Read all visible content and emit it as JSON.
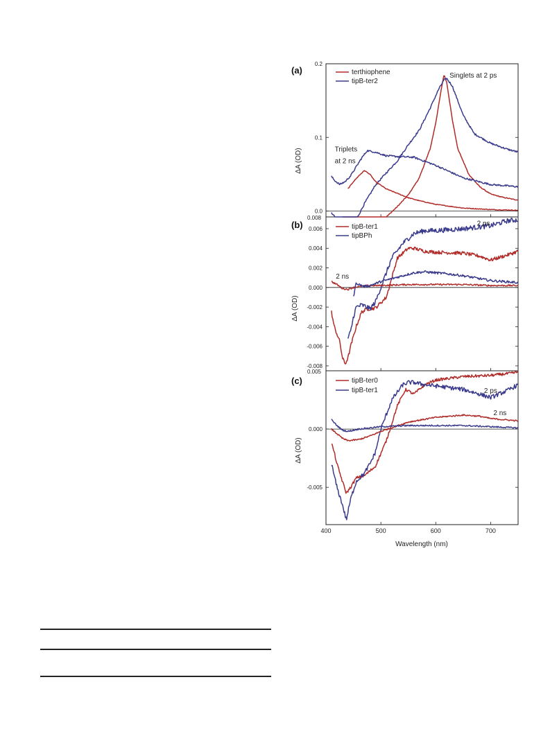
{
  "colors": {
    "red": "#b02a28",
    "blue": "#3a3a8c",
    "axis": "#222222"
  },
  "chart_data": [
    {
      "type": "line",
      "panel_label": "(a)",
      "ylabel": "ΔA (OD)",
      "xlabel": "",
      "xlim": [
        410,
        750
      ],
      "ylim": [
        -0.008,
        0.2
      ],
      "yticks": [
        0.0,
        0.1,
        0.2
      ],
      "ytick_labels": [
        "0.0",
        "0.1",
        "0.2"
      ],
      "ymin_label": "0.008",
      "zero_line": true,
      "legend": [
        "terthiophene",
        "tipB-ter2"
      ],
      "annotations": [
        {
          "text": "Singlets at 2 ps",
          "x": 625,
          "y": 0.181
        },
        {
          "text": "Triplets",
          "x": 416,
          "y": 0.081
        },
        {
          "text": "at 2 ns",
          "x": 416,
          "y": 0.065
        }
      ],
      "series": [
        {
          "color": "red",
          "noise": 0.0006,
          "x": [
            430,
            437,
            445,
            455,
            470,
            490,
            510,
            530,
            550,
            570,
            590,
            600,
            610,
            615,
            620,
            630,
            640,
            660,
            680,
            700,
            720,
            740,
            750
          ],
          "y": [
            -0.029,
            -0.035,
            -0.033,
            -0.03,
            -0.026,
            -0.018,
            -0.008,
            0.006,
            0.022,
            0.045,
            0.085,
            0.12,
            0.165,
            0.185,
            0.175,
            0.125,
            0.085,
            0.05,
            0.033,
            0.023,
            0.019,
            0.016,
            0.015
          ]
        },
        {
          "color": "blue",
          "noise": 0.0012,
          "x": [
            410,
            420,
            430,
            437,
            445,
            455,
            470,
            490,
            510,
            530,
            550,
            570,
            590,
            605,
            615,
            620,
            630,
            650,
            670,
            700,
            730,
            750
          ],
          "y": [
            -0.002,
            -0.012,
            -0.028,
            -0.036,
            -0.03,
            -0.012,
            0.01,
            0.035,
            0.052,
            0.068,
            0.09,
            0.11,
            0.14,
            0.165,
            0.178,
            0.18,
            0.17,
            0.13,
            0.105,
            0.092,
            0.084,
            0.08
          ]
        },
        {
          "color": "red",
          "noise": 0.0005,
          "x": [
            440,
            450,
            460,
            470,
            480,
            490,
            510,
            530,
            550,
            570,
            600,
            650,
            700,
            750
          ],
          "y": [
            0.03,
            0.04,
            0.048,
            0.055,
            0.05,
            0.04,
            0.03,
            0.024,
            0.018,
            0.014,
            0.009,
            0.004,
            0.002,
            0.001
          ]
        },
        {
          "color": "blue",
          "noise": 0.0012,
          "x": [
            410,
            415,
            425,
            435,
            445,
            455,
            465,
            475,
            490,
            510,
            530,
            560,
            600,
            650,
            700,
            750
          ],
          "y": [
            0.047,
            0.042,
            0.036,
            0.04,
            0.048,
            0.06,
            0.072,
            0.082,
            0.08,
            0.075,
            0.074,
            0.073,
            0.062,
            0.045,
            0.036,
            0.033
          ]
        }
      ]
    },
    {
      "type": "line",
      "panel_label": "(b)",
      "ylabel": "ΔA (OD)",
      "xlabel": "",
      "xlim": [
        410,
        750
      ],
      "ylim": [
        -0.0085,
        0.0072
      ],
      "yticks": [
        -0.008,
        -0.006,
        -0.004,
        -0.002,
        0.0,
        0.002,
        0.004,
        0.006
      ],
      "ytick_labels": [
        "-0.008",
        "-0.006",
        "-0.004",
        "-0.002",
        "0.000",
        "0.002",
        "0.004",
        "0.006"
      ],
      "zero_line": true,
      "legend": [
        "tipB-ter1",
        "tipBPh"
      ],
      "annotations": [
        {
          "text": "2 ps",
          "x": 675,
          "y": 0.0063
        },
        {
          "text": "2 ns",
          "x": 418,
          "y": 0.0009
        }
      ],
      "series": [
        {
          "color": "red",
          "noise": 0.00018,
          "x": [
            410,
            415,
            425,
            430,
            435,
            440,
            445,
            455,
            465,
            475,
            490,
            510,
            530,
            550,
            560,
            580,
            600,
            650,
            680,
            700,
            730,
            750
          ],
          "y": [
            -0.0025,
            -0.004,
            -0.0055,
            -0.0072,
            -0.0078,
            -0.0072,
            -0.006,
            -0.004,
            -0.0025,
            -0.0022,
            -0.0021,
            -0.001,
            0.003,
            0.004,
            0.004,
            0.0037,
            0.0036,
            0.0035,
            0.0032,
            0.0028,
            0.0033,
            0.0037
          ]
        },
        {
          "color": "blue",
          "noise": 0.00025,
          "x": [
            440,
            445,
            450,
            455,
            465,
            475,
            480,
            490,
            500,
            510,
            520,
            540,
            560,
            580,
            600,
            650,
            700,
            730,
            750
          ],
          "y": [
            -0.0052,
            -0.0045,
            -0.003,
            -0.002,
            -0.0018,
            -0.002,
            -0.0022,
            -0.0015,
            0.0,
            0.0015,
            0.003,
            0.0045,
            0.0055,
            0.0058,
            0.0058,
            0.006,
            0.0063,
            0.0068,
            0.0069
          ]
        },
        {
          "color": "red",
          "noise": 8e-05,
          "x": [
            410,
            420,
            430,
            440,
            450,
            460,
            480,
            500,
            550,
            600,
            650,
            700,
            750
          ],
          "y": [
            0.0006,
            0.0003,
            -0.0001,
            -0.0002,
            0.0,
            0.0001,
            0.0002,
            0.0002,
            0.0003,
            0.0003,
            0.0003,
            0.0002,
            0.0002
          ]
        },
        {
          "color": "blue",
          "noise": 0.00012,
          "x": [
            450,
            455,
            460,
            470,
            480,
            490,
            500,
            520,
            540,
            560,
            580,
            600,
            620,
            650,
            680,
            700,
            750
          ],
          "y": [
            -0.001,
            0.0005,
            0.0003,
            0.0001,
            0.0002,
            0.0004,
            0.0006,
            0.0009,
            0.0012,
            0.0015,
            0.0016,
            0.0015,
            0.0014,
            0.0012,
            0.0009,
            0.0007,
            0.0005
          ]
        }
      ]
    },
    {
      "type": "line",
      "panel_label": "(c)",
      "ylabel": "ΔA (OD)",
      "xlabel": "Wavelength (nm)",
      "xlim": [
        400,
        750
      ],
      "ylim": [
        -0.0082,
        0.005
      ],
      "xticks": [
        400,
        500,
        600,
        700
      ],
      "xtick_labels": [
        "400",
        "500",
        "600",
        "700"
      ],
      "yticks": [
        -0.005,
        0.0
      ],
      "ytick_labels": [
        "-0.005",
        "0.000"
      ],
      "ytop_label": "0.005",
      "zero_line": true,
      "legend": [
        "tipB-ter0",
        "tipB-ter1"
      ],
      "annotations": [
        {
          "text": "2 ps",
          "x": 688,
          "y": 0.0031
        },
        {
          "text": "2 ns",
          "x": 705,
          "y": 0.0012
        }
      ],
      "series": [
        {
          "color": "red",
          "noise": 0.00012,
          "x": [
            410,
            415,
            420,
            430,
            437,
            445,
            455,
            470,
            490,
            510,
            530,
            545,
            560,
            580,
            600,
            650,
            700,
            720,
            740,
            750
          ],
          "y": [
            -0.0012,
            -0.002,
            -0.003,
            -0.0045,
            -0.0055,
            -0.005,
            -0.0042,
            -0.004,
            -0.0032,
            -0.001,
            0.002,
            0.0034,
            0.003,
            0.0038,
            0.0042,
            0.0045,
            0.0046,
            0.0047,
            0.0048,
            0.0049
          ]
        },
        {
          "color": "blue",
          "noise": 0.00018,
          "x": [
            410,
            420,
            430,
            437,
            445,
            455,
            470,
            480,
            490,
            500,
            520,
            540,
            550,
            560,
            580,
            600,
            650,
            680,
            700,
            730,
            750
          ],
          "y": [
            -0.003,
            -0.005,
            -0.0065,
            -0.0078,
            -0.006,
            -0.0045,
            -0.0038,
            -0.003,
            -0.002,
            0.0,
            0.0025,
            0.0038,
            0.004,
            0.004,
            0.0038,
            0.0037,
            0.0034,
            0.003,
            0.0027,
            0.0033,
            0.0038
          ]
        },
        {
          "color": "red",
          "noise": 6e-05,
          "x": [
            410,
            420,
            430,
            440,
            460,
            480,
            500,
            550,
            600,
            650,
            680,
            700,
            750
          ],
          "y": [
            0.0,
            -0.0004,
            -0.0008,
            -0.001,
            -0.0009,
            -0.0006,
            -0.0002,
            0.0006,
            0.001,
            0.0012,
            0.0011,
            0.0009,
            0.0007
          ]
        },
        {
          "color": "blue",
          "noise": 6e-05,
          "x": [
            410,
            420,
            430,
            440,
            460,
            480,
            500,
            550,
            600,
            650,
            700,
            750
          ],
          "y": [
            0.0008,
            0.0003,
            -0.0001,
            -0.0002,
            0.0,
            0.0001,
            0.0002,
            0.0003,
            0.0003,
            0.0003,
            0.0002,
            0.0001
          ]
        }
      ]
    }
  ]
}
